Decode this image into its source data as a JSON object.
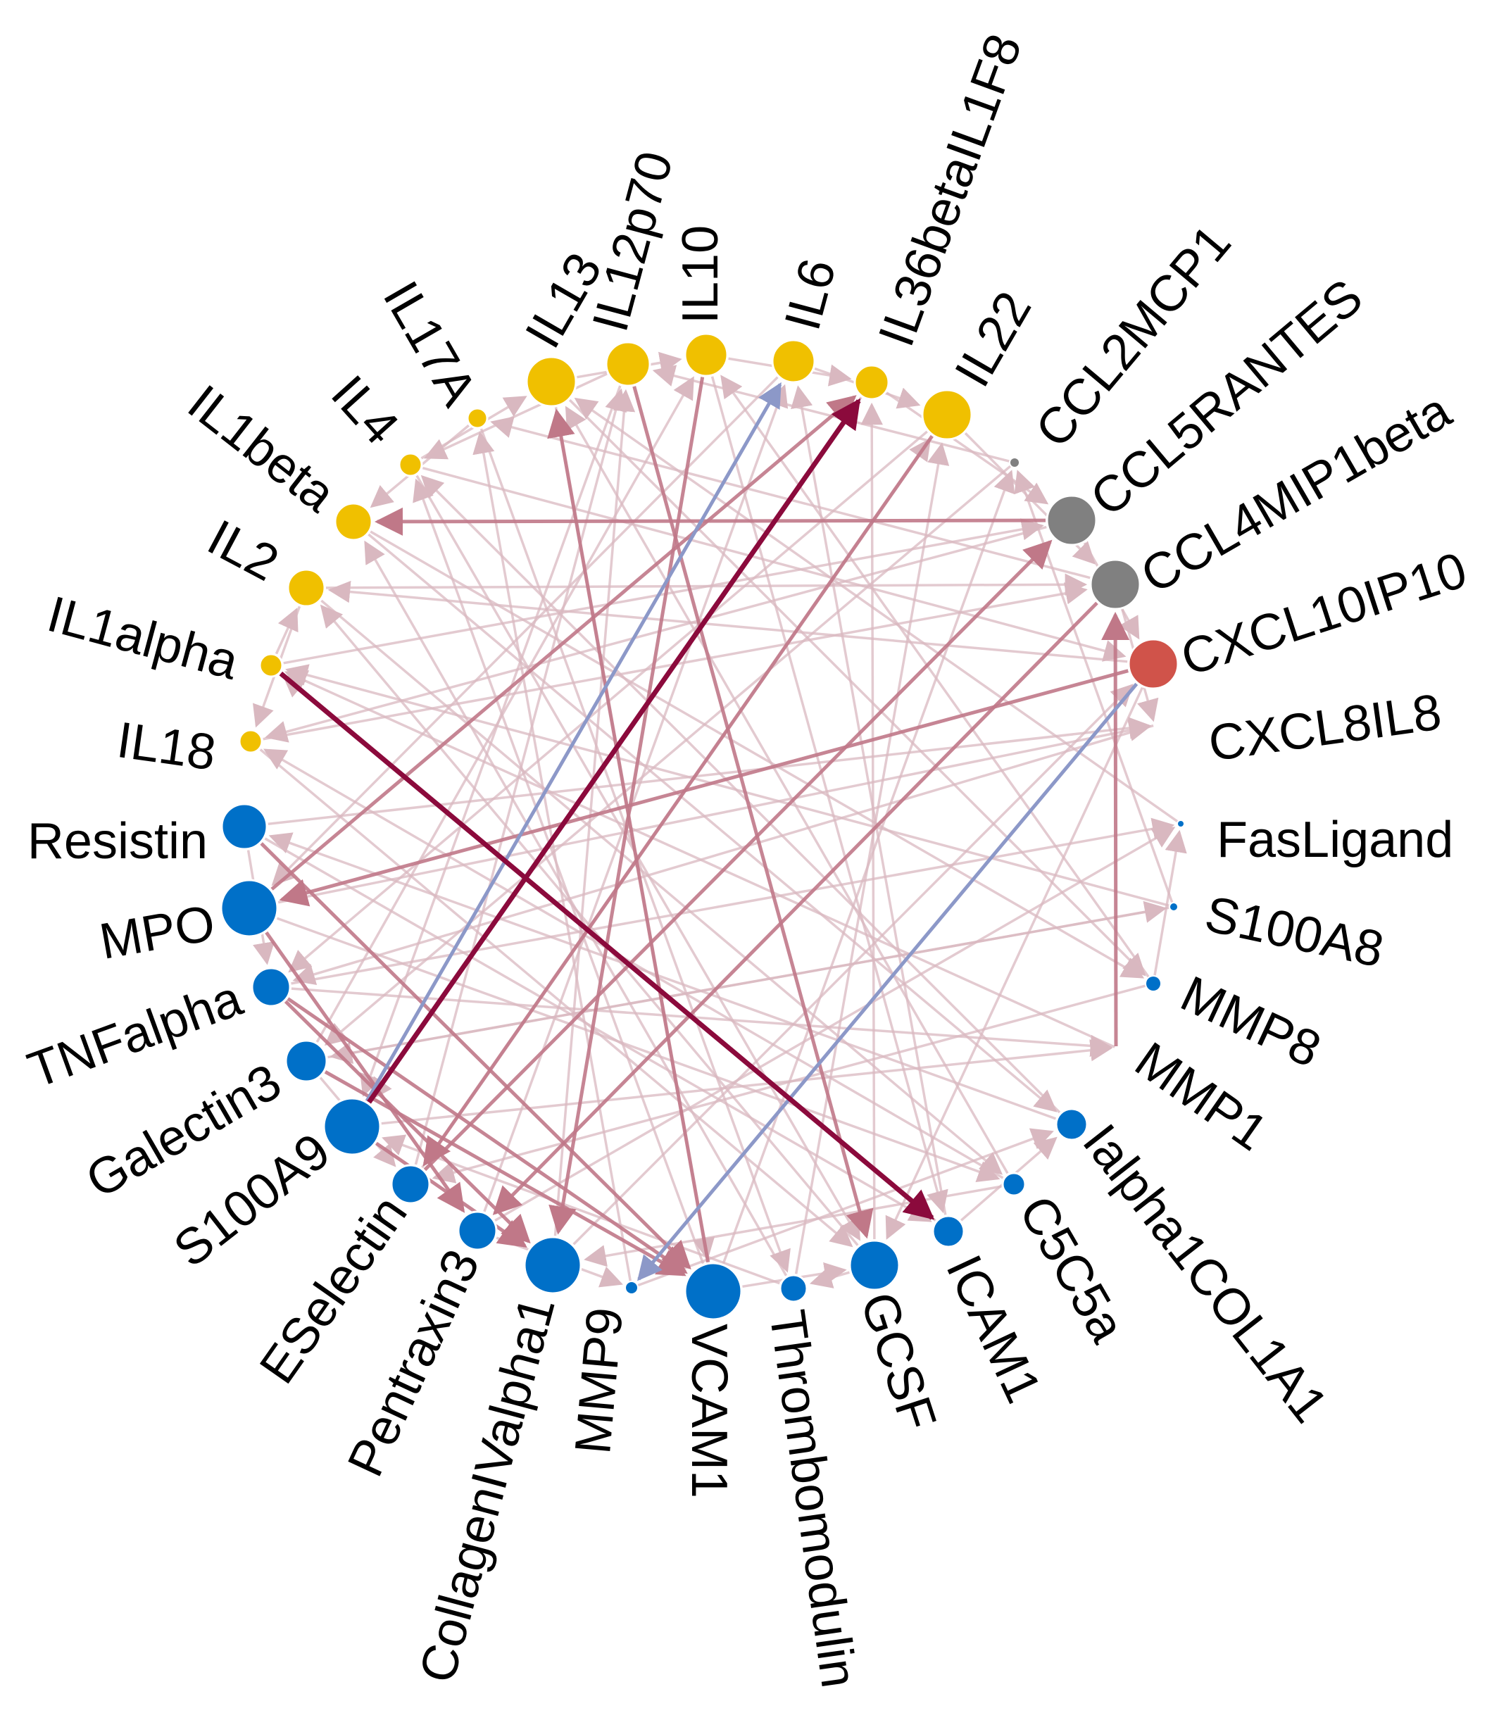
{
  "colors": {
    "yellow": "#F0C000",
    "gray": "#808080",
    "red": "#D0534A",
    "blue": "#0070C8",
    "edge_weak": "#D9B8C0",
    "edge_medium": "#C07888",
    "edge_strong": "#8B0A3C",
    "edge_negative": "#8C98C8"
  },
  "nodes": [
    {
      "id": "IL13",
      "label": "IL13",
      "group": "yellow",
      "size": "large"
    },
    {
      "id": "IL12p70",
      "label": "IL12p70",
      "group": "yellow",
      "size": "medium"
    },
    {
      "id": "IL10",
      "label": "IL10",
      "group": "yellow",
      "size": "medium"
    },
    {
      "id": "IL6",
      "label": "IL6",
      "group": "yellow",
      "size": "medium"
    },
    {
      "id": "IL36betaIL1F8",
      "label": "IL36betaIL1F8",
      "group": "yellow",
      "size": "small"
    },
    {
      "id": "IL22",
      "label": "IL22",
      "group": "yellow",
      "size": "large"
    },
    {
      "id": "CCL2MCP1",
      "label": "CCL2MCP1",
      "group": "gray",
      "size": "tiny"
    },
    {
      "id": "CCL5RANTES",
      "label": "CCL5RANTES",
      "group": "gray",
      "size": "large"
    },
    {
      "id": "CCL4MIP1beta",
      "label": "CCL4MIP1beta",
      "group": "gray",
      "size": "large"
    },
    {
      "id": "CXCL10IP10",
      "label": "CXCL10IP10",
      "group": "red",
      "size": "large"
    },
    {
      "id": "CXCL8IL8",
      "label": "CXCL8IL8",
      "group": "red",
      "size": "none"
    },
    {
      "id": "FasLigand",
      "label": "FasLigand",
      "group": "blue",
      "size": "tiny"
    },
    {
      "id": "S100A8",
      "label": "S100A8",
      "group": "blue",
      "size": "tiny"
    },
    {
      "id": "MMP8",
      "label": "MMP8",
      "group": "blue",
      "size": "tiny"
    },
    {
      "id": "MMP1",
      "label": "MMP1",
      "group": "blue",
      "size": "none"
    },
    {
      "id": "Ialpha1COL1A1",
      "label": "Ialpha1COL1A1",
      "group": "blue",
      "size": "small"
    },
    {
      "id": "C5C5a",
      "label": "C5C5a",
      "group": "blue",
      "size": "tiny"
    },
    {
      "id": "ICAM1",
      "label": "ICAM1",
      "group": "blue",
      "size": "small"
    },
    {
      "id": "GCSF",
      "label": "GCSF",
      "group": "blue",
      "size": "large"
    },
    {
      "id": "Thrombomodulin",
      "label": "Thrombomodulin",
      "group": "blue",
      "size": "small"
    },
    {
      "id": "VCAM1",
      "label": "VCAM1",
      "group": "blue",
      "size": "xlarge"
    },
    {
      "id": "MMP9",
      "label": "MMP9",
      "group": "blue",
      "size": "tiny"
    },
    {
      "id": "CollagenIValpha1",
      "label": "CollagenIValpha1",
      "group": "blue",
      "size": "xlarge"
    },
    {
      "id": "Pentraxin3",
      "label": "Pentraxin3",
      "group": "blue",
      "size": "small"
    },
    {
      "id": "ESelectin",
      "label": "ESelectin",
      "group": "blue",
      "size": "small"
    },
    {
      "id": "S100A9",
      "label": "S100A9",
      "group": "blue",
      "size": "xlarge"
    },
    {
      "id": "Galectin3",
      "label": "Galectin3",
      "group": "blue",
      "size": "medium"
    },
    {
      "id": "TNFalpha",
      "label": "TNFalpha",
      "group": "blue",
      "size": "small"
    },
    {
      "id": "MPO",
      "label": "MPO",
      "group": "blue",
      "size": "xlarge"
    },
    {
      "id": "Resistin",
      "label": "Resistin",
      "group": "blue",
      "size": "medium"
    },
    {
      "id": "IL18",
      "label": "IL18",
      "group": "yellow",
      "size": "small"
    },
    {
      "id": "IL1alpha",
      "label": "IL1alpha",
      "group": "yellow",
      "size": "small"
    },
    {
      "id": "IL2",
      "label": "IL2",
      "group": "yellow",
      "size": "small"
    },
    {
      "id": "IL1beta",
      "label": "IL1beta",
      "group": "yellow",
      "size": "small"
    },
    {
      "id": "IL4",
      "label": "IL4",
      "group": "yellow",
      "size": "small"
    },
    {
      "id": "IL17A",
      "label": "IL17A",
      "group": "yellow",
      "size": "small"
    }
  ],
  "edges": [
    {
      "from": "IL1alpha",
      "to": "ICAM1",
      "strength": "strong"
    },
    {
      "from": "S100A9",
      "to": "IL36betaIL1F8",
      "strength": "strong"
    },
    {
      "from": "S100A9",
      "to": "IL6",
      "strength": "negative"
    },
    {
      "from": "CXCL10IP10",
      "to": "MMP9",
      "strength": "negative"
    },
    {
      "from": "CCL5RANTES",
      "to": "IL1beta",
      "strength": "medium"
    },
    {
      "from": "VCAM1",
      "to": "IL13",
      "strength": "medium"
    },
    {
      "from": "MMP1",
      "to": "CCL4MIP1beta",
      "strength": "medium"
    },
    {
      "from": "CXCL10IP10",
      "to": "MPO",
      "strength": "medium"
    },
    {
      "from": "MPO",
      "to": "IL36betaIL1F8",
      "strength": "medium"
    },
    {
      "from": "CCL4MIP1beta",
      "to": "Pentraxin3",
      "strength": "medium"
    },
    {
      "from": "IL12p70",
      "to": "GCSF",
      "strength": "medium"
    },
    {
      "from": "IL10",
      "to": "CollagenIValpha1",
      "strength": "medium"
    },
    {
      "from": "Resistin",
      "to": "VCAM1",
      "strength": "medium"
    },
    {
      "from": "TNFalpha",
      "to": "CollagenIValpha1",
      "strength": "medium"
    },
    {
      "from": "Galectin3",
      "to": "VCAM1",
      "strength": "medium"
    },
    {
      "from": "ESelectin",
      "to": "CCL5RANTES",
      "strength": "medium"
    },
    {
      "from": "IL22",
      "to": "ESelectin",
      "strength": "medium"
    },
    {
      "from": "IL13",
      "to": "MMP8",
      "strength": "weak"
    },
    {
      "from": "IL4",
      "to": "CXCL10IP10",
      "strength": "weak"
    },
    {
      "from": "IL2",
      "to": "CCL4MIP1beta",
      "strength": "weak"
    },
    {
      "from": "IL1beta",
      "to": "Ialpha1COL1A1",
      "strength": "weak"
    },
    {
      "from": "IL17A",
      "to": "Thrombomodulin",
      "strength": "weak"
    },
    {
      "from": "IL18",
      "to": "GCSF",
      "strength": "weak"
    },
    {
      "from": "Resistin",
      "to": "CXCL8IL8",
      "strength": "weak"
    },
    {
      "from": "MPO",
      "to": "C5C5a",
      "strength": "weak"
    },
    {
      "from": "TNFalpha",
      "to": "FasLigand",
      "strength": "weak"
    },
    {
      "from": "Galectin3",
      "to": "S100A8",
      "strength": "weak"
    },
    {
      "from": "S100A9",
      "to": "MMP1",
      "strength": "weak"
    },
    {
      "from": "ESelectin",
      "to": "IL22",
      "strength": "weak"
    },
    {
      "from": "Pentraxin3",
      "to": "IL6",
      "strength": "weak"
    },
    {
      "from": "CollagenIValpha1",
      "to": "IL12p70",
      "strength": "weak"
    },
    {
      "from": "MMP9",
      "to": "IL17A",
      "strength": "weak"
    },
    {
      "from": "VCAM1",
      "to": "IL4",
      "strength": "weak"
    },
    {
      "from": "Thrombomodulin",
      "to": "IL1beta",
      "strength": "weak"
    },
    {
      "from": "GCSF",
      "to": "IL2",
      "strength": "weak"
    },
    {
      "from": "ICAM1",
      "to": "IL1alpha",
      "strength": "weak"
    },
    {
      "from": "C5C5a",
      "to": "IL18",
      "strength": "weak"
    },
    {
      "from": "Ialpha1COL1A1",
      "to": "Resistin",
      "strength": "weak"
    },
    {
      "from": "MMP8",
      "to": "IL10",
      "strength": "weak"
    },
    {
      "from": "FasLigand",
      "to": "IL13",
      "strength": "weak"
    },
    {
      "from": "S100A8",
      "to": "CCL2MCP1",
      "strength": "weak"
    },
    {
      "from": "CXCL8IL8",
      "to": "TNFalpha",
      "strength": "weak"
    },
    {
      "from": "CCL2MCP1",
      "to": "Galectin3",
      "strength": "weak"
    },
    {
      "from": "IL36betaIL1F8",
      "to": "S100A9",
      "strength": "weak"
    },
    {
      "from": "IL6",
      "to": "MPO",
      "strength": "weak"
    },
    {
      "from": "IL10",
      "to": "ICAM1",
      "strength": "weak"
    },
    {
      "from": "IL13",
      "to": "VCAM1",
      "strength": "weak"
    },
    {
      "from": "IL12p70",
      "to": "S100A9",
      "strength": "weak"
    },
    {
      "from": "CCL4MIP1beta",
      "to": "IL17A",
      "strength": "weak"
    },
    {
      "from": "CXCL10IP10",
      "to": "IL2",
      "strength": "weak"
    },
    {
      "from": "CCL5RANTES",
      "to": "IL18",
      "strength": "weak"
    },
    {
      "from": "IL22",
      "to": "TNFalpha",
      "strength": "weak"
    },
    {
      "from": "IL1alpha",
      "to": "CCL5RANTES",
      "strength": "weak"
    },
    {
      "from": "IL4",
      "to": "GCSF",
      "strength": "weak"
    },
    {
      "from": "IL1beta",
      "to": "MMP8",
      "strength": "weak"
    },
    {
      "from": "IL2",
      "to": "C5C5a",
      "strength": "weak"
    },
    {
      "from": "IL18",
      "to": "CCL4MIP1beta",
      "strength": "weak"
    },
    {
      "from": "Resistin",
      "to": "ICAM1",
      "strength": "weak"
    },
    {
      "from": "MPO",
      "to": "CXCL8IL8",
      "strength": "weak"
    },
    {
      "from": "Galectin3",
      "to": "IL10",
      "strength": "weak"
    },
    {
      "from": "TNFalpha",
      "to": "MMP1",
      "strength": "weak"
    },
    {
      "from": "ESelectin",
      "to": "IL12p70",
      "strength": "weak"
    },
    {
      "from": "Pentraxin3",
      "to": "FasLigand",
      "strength": "weak"
    },
    {
      "from": "CollagenIValpha1",
      "to": "CXCL10IP10",
      "strength": "weak"
    },
    {
      "from": "VCAM1",
      "to": "CCL2MCP1",
      "strength": "weak"
    },
    {
      "from": "GCSF",
      "to": "IL36betaIL1F8",
      "strength": "weak"
    },
    {
      "from": "ICAM1",
      "to": "IL6",
      "strength": "weak"
    },
    {
      "from": "Thrombomodulin",
      "to": "IL22",
      "strength": "weak"
    },
    {
      "from": "MMP1",
      "to": "IL1alpha",
      "strength": "weak"
    },
    {
      "from": "S100A8",
      "to": "Galectin3",
      "strength": "weak"
    },
    {
      "from": "MMP8",
      "to": "ESelectin",
      "strength": "weak"
    },
    {
      "from": "Ialpha1COL1A1",
      "to": "IL4",
      "strength": "weak"
    },
    {
      "from": "C5C5a",
      "to": "IL13",
      "strength": "weak"
    },
    {
      "from": "IL13",
      "to": "IL10",
      "strength": "weak"
    },
    {
      "from": "IL6",
      "to": "IL22",
      "strength": "weak"
    },
    {
      "from": "IL36betaIL1F8",
      "to": "CCL5RANTES",
      "strength": "weak"
    },
    {
      "from": "CCL5RANTES",
      "to": "CXCL10IP10",
      "strength": "weak"
    },
    {
      "from": "IL17A",
      "to": "IL1beta",
      "strength": "weak"
    },
    {
      "from": "IL2",
      "to": "IL18",
      "strength": "weak"
    },
    {
      "from": "Resistin",
      "to": "TNFalpha",
      "strength": "weak"
    },
    {
      "from": "Galectin3",
      "to": "ESelectin",
      "strength": "weak"
    },
    {
      "from": "Pentraxin3",
      "to": "MMP9",
      "strength": "weak"
    },
    {
      "from": "VCAM1",
      "to": "GCSF",
      "strength": "weak"
    },
    {
      "from": "ICAM1",
      "to": "Ialpha1COL1A1",
      "strength": "weak"
    },
    {
      "from": "MMP8",
      "to": "FasLigand",
      "strength": "weak"
    },
    {
      "from": "IL10",
      "to": "IL36betaIL1F8",
      "strength": "weak"
    },
    {
      "from": "IL12p70",
      "to": "IL4",
      "strength": "weak"
    },
    {
      "from": "CCL4MIP1beta",
      "to": "CXCL8IL8",
      "strength": "weak"
    },
    {
      "from": "IL22",
      "to": "CCL4MIP1beta",
      "strength": "weak"
    },
    {
      "from": "S100A9",
      "to": "CollagenIValpha1",
      "strength": "medium"
    },
    {
      "from": "MPO",
      "to": "Pentraxin3",
      "strength": "medium"
    },
    {
      "from": "TNFalpha",
      "to": "VCAM1",
      "strength": "medium"
    },
    {
      "from": "GCSF",
      "to": "Thrombomodulin",
      "strength": "weak"
    },
    {
      "from": "IL1alpha",
      "to": "IL2",
      "strength": "weak"
    },
    {
      "from": "IL4",
      "to": "IL13",
      "strength": "weak"
    },
    {
      "from": "CXCL10IP10",
      "to": "GCSF",
      "strength": "weak"
    },
    {
      "from": "CCL2MCP1",
      "to": "IL12p70",
      "strength": "weak"
    },
    {
      "from": "C5C5a",
      "to": "CollagenIValpha1",
      "strength": "weak"
    },
    {
      "from": "MMP9",
      "to": "Ialpha1COL1A1",
      "strength": "weak"
    },
    {
      "from": "Thrombomodulin",
      "to": "S100A9",
      "strength": "weak"
    },
    {
      "from": "S100A8",
      "to": "IL1alpha",
      "strength": "weak"
    }
  ]
}
